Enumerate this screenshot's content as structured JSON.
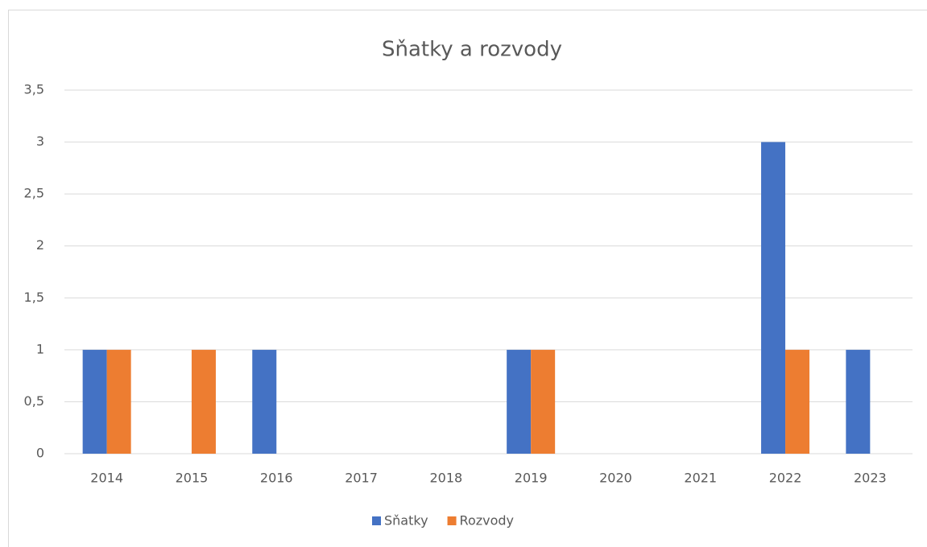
{
  "chart_data": {
    "type": "bar",
    "title": "Sňatky a rozvody",
    "categories": [
      "2014",
      "2015",
      "2016",
      "2017",
      "2018",
      "2019",
      "2020",
      "2021",
      "2022",
      "2023"
    ],
    "series": [
      {
        "name": "Sňatky",
        "color": "#4472c4",
        "values": [
          1,
          0,
          1,
          0,
          0,
          1,
          0,
          0,
          3,
          1
        ]
      },
      {
        "name": "Rozvody",
        "color": "#ed7d31",
        "values": [
          1,
          1,
          0,
          0,
          0,
          1,
          0,
          0,
          1,
          0
        ]
      }
    ],
    "ylim": [
      0,
      3.5
    ],
    "yticks": [
      0,
      {
        "value": 0.5,
        "label": "0,5"
      },
      1,
      {
        "value": 1.5,
        "label": "1,5"
      },
      2,
      {
        "value": 2.5,
        "label": "2,5"
      },
      3,
      {
        "value": 3.5,
        "label": "3,5"
      }
    ],
    "grid": true,
    "legend": "bottom"
  }
}
